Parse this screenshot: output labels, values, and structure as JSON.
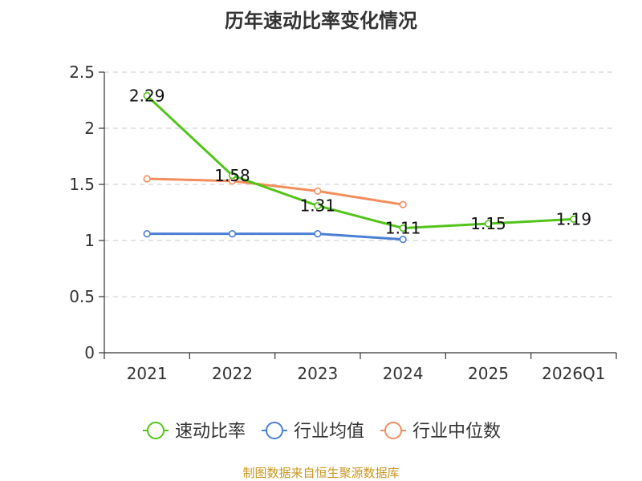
{
  "chart_data": {
    "type": "line",
    "title": "历年速动比率变化情况",
    "categories": [
      "2021",
      "2022",
      "2023",
      "2024",
      "2025",
      "2026Q1"
    ],
    "y_ticks": [
      "0",
      "0.5",
      "1",
      "1.5",
      "2",
      "2.5"
    ],
    "ylim": [
      0,
      2.5
    ],
    "grid": true,
    "legend_position": "bottom",
    "series": [
      {
        "name": "速动比率",
        "color": "#52c41a",
        "values": [
          2.29,
          1.58,
          1.31,
          1.11,
          1.15,
          1.19
        ],
        "labels": [
          "2.29",
          "1.58",
          "1.31",
          "1.11",
          "1.15",
          "1.19"
        ]
      },
      {
        "name": "行业均值",
        "color": "#4a7fd6",
        "values": [
          1.06,
          1.06,
          1.06,
          1.01,
          null,
          null
        ]
      },
      {
        "name": "行业中位数",
        "color": "#f28e5c",
        "values": [
          1.55,
          1.53,
          1.44,
          1.32,
          null,
          null
        ]
      }
    ],
    "source": "制图数据来自恒生聚源数据库"
  }
}
